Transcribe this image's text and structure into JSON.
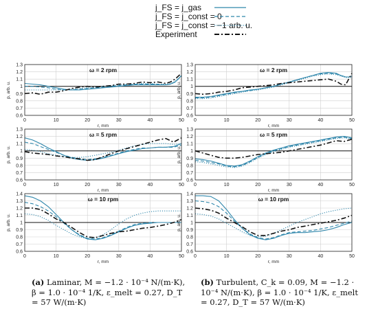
{
  "legend": {
    "entries": [
      {
        "label": "j_FS = j_gas",
        "style": "solid"
      },
      {
        "label": "j_FS = j_const = 0",
        "style": "dashed"
      },
      {
        "label": "j_FS = j_const = −1 arb. u.",
        "style": "dotted"
      },
      {
        "label": "Experiment",
        "style": "dashdot"
      }
    ]
  },
  "colors": {
    "model": "#2e86ab",
    "experiment": "#111111",
    "reference": "#111111",
    "grid": "#cfcfcf"
  },
  "captions": {
    "left_tag": "(a)",
    "left_text": "Laminar, M = −1.2 · 10⁻⁴ N/(m·K), β = 1.0 · 10⁻⁴ 1/K, ε_melt = 0.27, D_T = 57 W/(m·K)",
    "right_tag": "(b)",
    "right_text": "Turbulent, C_k = 0.09, M = −1.2 · 10⁻⁴ N/(m·K), β = 1.0 · 10⁻⁴ 1/K, ε_melt = 0.27, D_T = 57 W/(m·K)"
  },
  "chart_data": [
    {
      "type": "line",
      "column": "left",
      "row": 0,
      "title": "ω = 2 rpm",
      "xlabel": "r, mm",
      "ylabel": "p, arb. u.",
      "xlim": [
        0,
        50
      ],
      "ylim": [
        0.6,
        1.3
      ],
      "xticks": [
        0,
        10,
        20,
        30,
        40,
        50
      ],
      "yticks": [
        0.6,
        0.7,
        0.8,
        0.9,
        1,
        1.1,
        1.2,
        1.3
      ],
      "grid": true,
      "reference_y": 1,
      "x": [
        0,
        2.5,
        5,
        7.5,
        10,
        12.5,
        15,
        17.5,
        20,
        22.5,
        25,
        27.5,
        30,
        32.5,
        35,
        37.5,
        40,
        42.5,
        45,
        46.5,
        48,
        49,
        50
      ],
      "series": [
        {
          "name": "j_FS = j_gas",
          "style": "solid",
          "values": [
            1.04,
            1.03,
            1.02,
            1.0,
            0.98,
            0.96,
            0.95,
            0.95,
            0.96,
            0.97,
            0.98,
            0.99,
            1.0,
            1.01,
            1.02,
            1.02,
            1.02,
            1.02,
            1.02,
            1.03,
            1.06,
            1.1,
            1.15
          ]
        },
        {
          "name": "j_FS = j_const = 0",
          "style": "dashed",
          "values": [
            1.0,
            1.0,
            0.99,
            0.98,
            0.96,
            0.95,
            0.95,
            0.96,
            0.97,
            0.98,
            0.99,
            1.0,
            1.01,
            1.02,
            1.03,
            1.03,
            1.03,
            1.03,
            1.02,
            1.03,
            1.06,
            1.1,
            1.14
          ]
        },
        {
          "name": "j_FS = j_const = −1 arb. u.",
          "style": "dotted",
          "values": [
            0.95,
            0.95,
            0.95,
            0.95,
            0.95,
            0.95,
            0.96,
            0.97,
            0.98,
            0.99,
            1.0,
            1.01,
            1.02,
            1.03,
            1.03,
            1.04,
            1.04,
            1.03,
            1.03,
            1.04,
            1.07,
            1.11,
            1.14
          ]
        },
        {
          "name": "Experiment",
          "style": "dashdot",
          "values": [
            0.9,
            0.91,
            0.89,
            0.92,
            0.92,
            0.94,
            0.97,
            0.99,
            1.0,
            0.99,
            1.0,
            1.01,
            1.03,
            1.03,
            1.04,
            1.06,
            1.05,
            1.06,
            1.04,
            1.06,
            1.1,
            1.14,
            1.18
          ]
        }
      ]
    },
    {
      "type": "line",
      "column": "right",
      "row": 0,
      "title": "ω = 2 rpm",
      "xlabel": "r, mm",
      "ylabel": "p, arb. u.",
      "xlim": [
        0,
        50
      ],
      "ylim": [
        0.6,
        1.3
      ],
      "xticks": [
        0,
        10,
        20,
        30,
        40,
        50
      ],
      "yticks": [
        0.6,
        0.7,
        0.8,
        0.9,
        1,
        1.1,
        1.2,
        1.3
      ],
      "grid": true,
      "reference_y": 1,
      "x": [
        0,
        2.5,
        5,
        7.5,
        10,
        12.5,
        15,
        17.5,
        20,
        22.5,
        25,
        27.5,
        30,
        32.5,
        35,
        37.5,
        40,
        42.5,
        45,
        46.5,
        48,
        49,
        50
      ],
      "series": [
        {
          "name": "j_FS = j_gas",
          "style": "solid",
          "values": [
            0.85,
            0.85,
            0.86,
            0.88,
            0.9,
            0.92,
            0.93,
            0.95,
            0.96,
            0.98,
            1.0,
            1.03,
            1.06,
            1.09,
            1.12,
            1.15,
            1.18,
            1.19,
            1.18,
            1.15,
            1.13,
            1.13,
            1.14
          ]
        },
        {
          "name": "j_FS = j_const = 0",
          "style": "dashed",
          "values": [
            0.84,
            0.84,
            0.85,
            0.87,
            0.89,
            0.91,
            0.93,
            0.94,
            0.96,
            0.98,
            1.0,
            1.03,
            1.06,
            1.09,
            1.12,
            1.15,
            1.17,
            1.18,
            1.17,
            1.15,
            1.13,
            1.13,
            1.13
          ]
        },
        {
          "name": "j_FS = j_const = −1 arb. u.",
          "style": "dotted",
          "values": [
            0.83,
            0.83,
            0.84,
            0.86,
            0.88,
            0.9,
            0.92,
            0.94,
            0.95,
            0.97,
            0.99,
            1.02,
            1.05,
            1.08,
            1.11,
            1.14,
            1.16,
            1.17,
            1.16,
            1.14,
            1.12,
            1.12,
            1.12
          ]
        },
        {
          "name": "Experiment",
          "style": "dashdot",
          "values": [
            0.9,
            0.89,
            0.9,
            0.92,
            0.93,
            0.95,
            0.98,
            0.99,
            1.0,
            1.01,
            1.02,
            1.04,
            1.05,
            1.06,
            1.07,
            1.08,
            1.09,
            1.1,
            1.07,
            1.03,
            1.02,
            1.1,
            1.18
          ]
        }
      ]
    },
    {
      "type": "line",
      "column": "left",
      "row": 1,
      "title": "ω = 5 rpm",
      "xlabel": "r, mm",
      "ylabel": "p, arb. u.",
      "xlim": [
        0,
        50
      ],
      "ylim": [
        0.6,
        1.3
      ],
      "xticks": [
        0,
        10,
        20,
        30,
        40,
        50
      ],
      "yticks": [
        0.6,
        0.7,
        0.8,
        0.9,
        1,
        1.1,
        1.2,
        1.3
      ],
      "grid": true,
      "reference_y": 1,
      "x": [
        0,
        2.5,
        5,
        7.5,
        10,
        12.5,
        15,
        17.5,
        20,
        22.5,
        25,
        27.5,
        30,
        32.5,
        35,
        37.5,
        40,
        42.5,
        45,
        47.5,
        50
      ],
      "series": [
        {
          "name": "j_FS = j_gas",
          "style": "solid",
          "values": [
            1.18,
            1.15,
            1.1,
            1.04,
            0.99,
            0.94,
            0.9,
            0.88,
            0.87,
            0.88,
            0.9,
            0.93,
            0.96,
            0.99,
            1.01,
            1.03,
            1.04,
            1.05,
            1.05,
            1.06,
            1.1
          ]
        },
        {
          "name": "j_FS = j_const = 0",
          "style": "dashed",
          "values": [
            1.12,
            1.1,
            1.06,
            1.02,
            0.98,
            0.94,
            0.91,
            0.89,
            0.88,
            0.89,
            0.91,
            0.94,
            0.97,
            1.0,
            1.02,
            1.04,
            1.04,
            1.05,
            1.05,
            1.05,
            1.08
          ]
        },
        {
          "name": "j_FS = j_const = −1 arb. u.",
          "style": "dotted",
          "values": [
            1.02,
            1.01,
            0.99,
            0.96,
            0.94,
            0.92,
            0.91,
            0.91,
            0.92,
            0.94,
            0.96,
            0.98,
            1.01,
            1.04,
            1.07,
            1.09,
            1.1,
            1.1,
            1.1,
            1.09,
            1.1
          ]
        },
        {
          "name": "Experiment",
          "style": "dashdot",
          "values": [
            0.99,
            0.97,
            0.96,
            0.95,
            0.93,
            0.92,
            0.9,
            0.89,
            0.87,
            0.88,
            0.92,
            0.96,
            1.0,
            1.03,
            1.06,
            1.09,
            1.12,
            1.15,
            1.17,
            1.12,
            1.18
          ]
        }
      ]
    },
    {
      "type": "line",
      "column": "right",
      "row": 1,
      "title": "ω = 5 rpm",
      "xlabel": "r, mm",
      "ylabel": "p, arb. u.",
      "xlim": [
        0,
        50
      ],
      "ylim": [
        0.6,
        1.3
      ],
      "xticks": [
        0,
        10,
        20,
        30,
        40,
        50
      ],
      "yticks": [
        0.6,
        0.7,
        0.8,
        0.9,
        1,
        1.1,
        1.2,
        1.3
      ],
      "grid": true,
      "reference_y": 1,
      "x": [
        0,
        2.5,
        5,
        7.5,
        10,
        12.5,
        15,
        17.5,
        20,
        22.5,
        25,
        27.5,
        30,
        32.5,
        35,
        37.5,
        40,
        42.5,
        45,
        47.5,
        50
      ],
      "series": [
        {
          "name": "j_FS = j_gas",
          "style": "solid",
          "values": [
            0.89,
            0.88,
            0.86,
            0.83,
            0.8,
            0.79,
            0.81,
            0.86,
            0.92,
            0.97,
            1.01,
            1.04,
            1.07,
            1.09,
            1.11,
            1.13,
            1.15,
            1.17,
            1.19,
            1.2,
            1.18
          ]
        },
        {
          "name": "j_FS = j_const = 0",
          "style": "dashed",
          "values": [
            0.87,
            0.86,
            0.84,
            0.82,
            0.79,
            0.78,
            0.8,
            0.85,
            0.91,
            0.96,
            1.0,
            1.03,
            1.06,
            1.08,
            1.1,
            1.12,
            1.14,
            1.16,
            1.18,
            1.19,
            1.17
          ]
        },
        {
          "name": "j_FS = j_const = −1 arb. u.",
          "style": "dotted",
          "values": [
            0.85,
            0.84,
            0.82,
            0.8,
            0.78,
            0.77,
            0.79,
            0.84,
            0.9,
            0.95,
            0.99,
            1.02,
            1.05,
            1.07,
            1.09,
            1.11,
            1.13,
            1.15,
            1.17,
            1.18,
            1.16
          ]
        },
        {
          "name": "Experiment",
          "style": "dashdot",
          "values": [
            1.0,
            0.97,
            0.94,
            0.91,
            0.9,
            0.9,
            0.91,
            0.93,
            0.95,
            0.96,
            0.97,
            0.98,
            1.0,
            1.02,
            1.04,
            1.06,
            1.08,
            1.11,
            1.14,
            1.13,
            1.16
          ]
        }
      ]
    },
    {
      "type": "line",
      "column": "left",
      "row": 2,
      "title": "ω = 10 rpm",
      "xlabel": "r, mm",
      "ylabel": "p, arb. u.",
      "xlim": [
        0,
        50
      ],
      "ylim": [
        0.6,
        1.4
      ],
      "xticks": [
        0,
        10,
        20,
        30,
        40,
        50
      ],
      "yticks": [
        0.6,
        0.7,
        0.8,
        0.9,
        1,
        1.1,
        1.2,
        1.3,
        1.4
      ],
      "grid": true,
      "reference_y": 1,
      "x": [
        0,
        2.5,
        5,
        7.5,
        10,
        12.5,
        15,
        17.5,
        20,
        22.5,
        25,
        27.5,
        30,
        32.5,
        35,
        37.5,
        40,
        42.5,
        45,
        47.5,
        50
      ],
      "series": [
        {
          "name": "j_FS = j_gas",
          "style": "solid",
          "values": [
            1.37,
            1.35,
            1.3,
            1.22,
            1.11,
            1.0,
            0.9,
            0.82,
            0.77,
            0.76,
            0.78,
            0.82,
            0.87,
            0.92,
            0.96,
            0.98,
            0.99,
            1.0,
            1.0,
            1.0,
            1.0
          ]
        },
        {
          "name": "j_FS = j_const = 0",
          "style": "dashed",
          "values": [
            1.28,
            1.26,
            1.22,
            1.16,
            1.08,
            0.99,
            0.9,
            0.83,
            0.78,
            0.77,
            0.79,
            0.83,
            0.88,
            0.93,
            0.97,
            0.99,
            1.0,
            1.0,
            1.0,
            1.0,
            1.0
          ]
        },
        {
          "name": "j_FS = j_const = −1 arb. u.",
          "style": "dotted",
          "values": [
            1.12,
            1.11,
            1.08,
            1.03,
            0.96,
            0.9,
            0.84,
            0.8,
            0.78,
            0.79,
            0.83,
            0.9,
            0.98,
            1.05,
            1.1,
            1.13,
            1.15,
            1.16,
            1.16,
            1.16,
            1.16
          ]
        },
        {
          "name": "Experiment",
          "style": "dashdot",
          "values": [
            1.2,
            1.2,
            1.18,
            1.12,
            1.05,
            1.0,
            0.93,
            0.86,
            0.8,
            0.79,
            0.82,
            0.85,
            0.87,
            0.88,
            0.9,
            0.92,
            0.93,
            0.95,
            0.97,
            1.0,
            1.04
          ]
        }
      ]
    },
    {
      "type": "line",
      "column": "right",
      "row": 2,
      "title": "ω = 10 rpm",
      "xlabel": "r, mm",
      "ylabel": "p, arb. u.",
      "xlim": [
        0,
        50
      ],
      "ylim": [
        0.6,
        1.4
      ],
      "xticks": [
        0,
        10,
        20,
        30,
        40,
        50
      ],
      "yticks": [
        0.6,
        0.7,
        0.8,
        0.9,
        1,
        1.1,
        1.2,
        1.3,
        1.4
      ],
      "grid": true,
      "reference_y": 1,
      "x": [
        0,
        2.5,
        5,
        7.5,
        10,
        12.5,
        15,
        17.5,
        20,
        22.5,
        25,
        27.5,
        30,
        32.5,
        35,
        37.5,
        40,
        42.5,
        45,
        47.5,
        50
      ],
      "series": [
        {
          "name": "j_FS = j_gas",
          "style": "solid",
          "values": [
            1.37,
            1.37,
            1.36,
            1.3,
            1.18,
            1.04,
            0.92,
            0.83,
            0.78,
            0.76,
            0.78,
            0.82,
            0.85,
            0.86,
            0.86,
            0.87,
            0.88,
            0.9,
            0.93,
            0.97,
            1.0
          ]
        },
        {
          "name": "j_FS = j_const = 0",
          "style": "dashed",
          "values": [
            1.3,
            1.29,
            1.27,
            1.22,
            1.13,
            1.02,
            0.92,
            0.84,
            0.79,
            0.77,
            0.79,
            0.83,
            0.86,
            0.87,
            0.88,
            0.89,
            0.91,
            0.93,
            0.96,
            0.99,
            1.02
          ]
        },
        {
          "name": "j_FS = j_const = −1 arb. u.",
          "style": "dotted",
          "values": [
            1.12,
            1.11,
            1.09,
            1.05,
            0.99,
            0.93,
            0.87,
            0.82,
            0.8,
            0.81,
            0.85,
            0.9,
            0.95,
            1.0,
            1.04,
            1.08,
            1.12,
            1.15,
            1.17,
            1.19,
            1.2
          ]
        },
        {
          "name": "Experiment",
          "style": "dashdot",
          "values": [
            1.2,
            1.19,
            1.17,
            1.13,
            1.06,
            1.0,
            0.94,
            0.87,
            0.82,
            0.82,
            0.85,
            0.88,
            0.9,
            0.93,
            0.95,
            0.97,
            0.99,
            1.01,
            1.03,
            1.06,
            1.1
          ]
        }
      ]
    }
  ]
}
